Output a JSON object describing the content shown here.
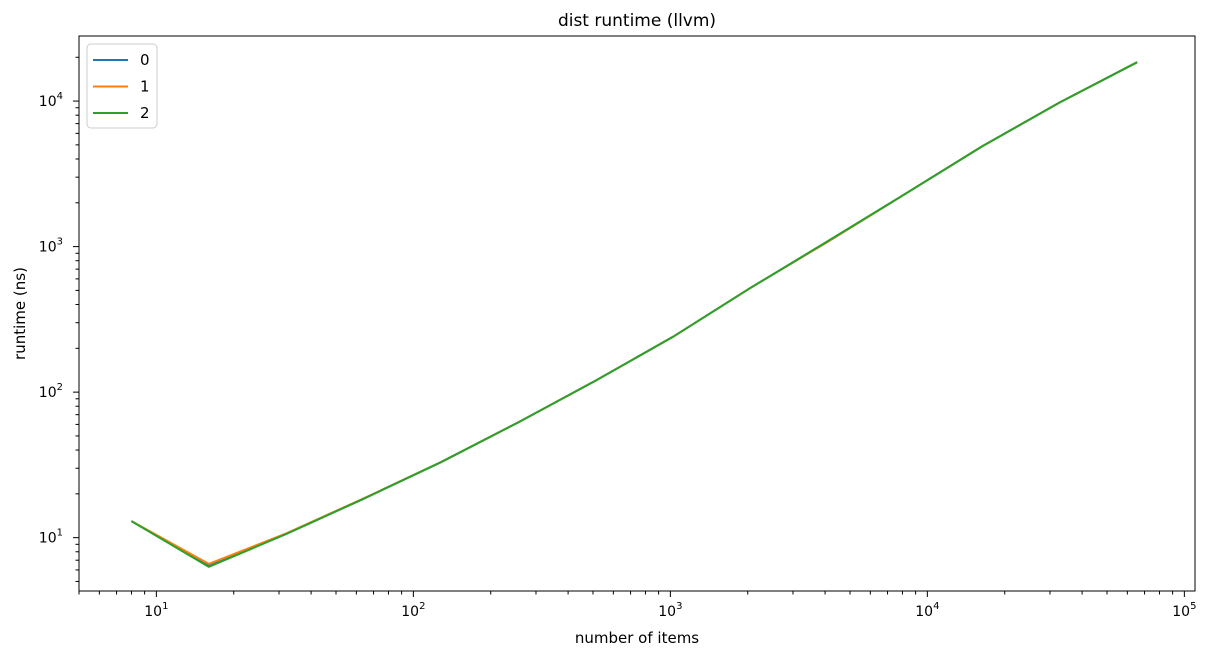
{
  "chart_data": {
    "type": "line",
    "title": "dist runtime (llvm)",
    "xlabel": "number of items",
    "ylabel": "runtime (ns)",
    "xscale": "log",
    "yscale": "log",
    "xlim": [
      5.0,
      110000
    ],
    "ylim": [
      4.3,
      28000
    ],
    "xticks": [
      {
        "value": 10,
        "base": "10",
        "exp": "1"
      },
      {
        "value": 100,
        "base": "10",
        "exp": "2"
      },
      {
        "value": 1000,
        "base": "10",
        "exp": "3"
      },
      {
        "value": 10000,
        "base": "10",
        "exp": "4"
      },
      {
        "value": 100000,
        "base": "10",
        "exp": "5"
      }
    ],
    "yticks": [
      {
        "value": 10,
        "base": "10",
        "exp": "1"
      },
      {
        "value": 100,
        "base": "10",
        "exp": "2"
      },
      {
        "value": 1000,
        "base": "10",
        "exp": "3"
      },
      {
        "value": 10000,
        "base": "10",
        "exp": "4"
      }
    ],
    "grid": false,
    "legend": "top-left",
    "series": [
      {
        "name": "0",
        "color": "#1f77b4",
        "x": [
          8,
          16,
          32,
          64,
          128,
          256,
          512,
          1024,
          2048,
          4096,
          8192,
          16384,
          32768,
          65536
        ],
        "y": [
          13,
          6.4,
          10.6,
          18.5,
          33,
          62,
          120,
          240,
          520,
          1080,
          2300,
          4900,
          9800,
          18500
        ]
      },
      {
        "name": "1",
        "color": "#ff7f0e",
        "x": [
          8,
          16,
          32,
          64,
          128,
          256,
          512,
          1024,
          2048,
          4096,
          8192,
          16384,
          32768,
          65536
        ],
        "y": [
          13,
          6.6,
          10.7,
          18.6,
          33,
          62,
          120,
          240,
          520,
          1080,
          2300,
          4900,
          9800,
          18500
        ]
      },
      {
        "name": "2",
        "color": "#2ca02c",
        "x": [
          8,
          16,
          32,
          64,
          128,
          256,
          512,
          1024,
          2048,
          4096,
          8192,
          16384,
          32768,
          65536
        ],
        "y": [
          13,
          6.3,
          10.6,
          18.5,
          33,
          62,
          120,
          240,
          520,
          1090,
          2300,
          4900,
          9800,
          18500
        ]
      }
    ]
  }
}
